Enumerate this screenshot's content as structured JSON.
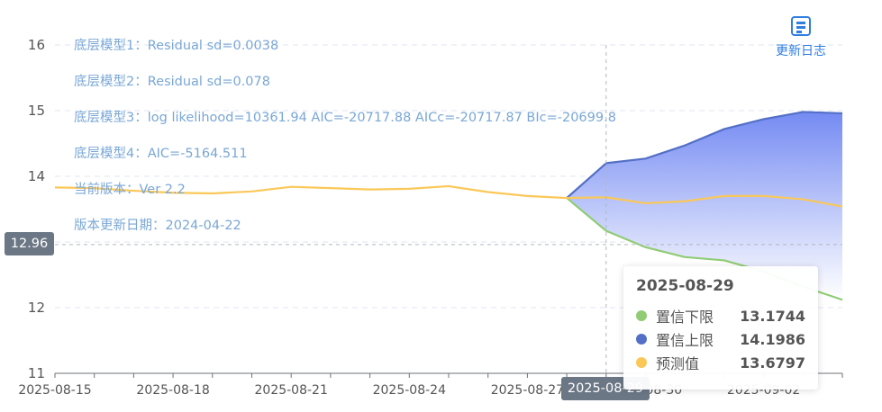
{
  "chart_data": {
    "type": "area",
    "x": [
      "2025-08-15",
      "2025-08-16",
      "2025-08-17",
      "2025-08-18",
      "2025-08-19",
      "2025-08-20",
      "2025-08-21",
      "2025-08-22",
      "2025-08-23",
      "2025-08-24",
      "2025-08-25",
      "2025-08-26",
      "2025-08-27",
      "2025-08-28",
      "2025-08-29",
      "2025-08-30",
      "2025-08-31",
      "2025-09-01",
      "2025-09-02",
      "2025-09-03",
      "2025-09-04"
    ],
    "x_tick_labels": [
      "2025-08-15",
      "2025-08-18",
      "2025-08-21",
      "2025-08-24",
      "2025-08-27",
      "2025-08-30",
      "2025-09-02"
    ],
    "y_ticks": [
      11,
      12,
      13,
      14,
      15,
      16
    ],
    "ylim": [
      11,
      16
    ],
    "series": [
      {
        "name": "置信下限",
        "color": "#91cc75",
        "values": [
          null,
          null,
          null,
          null,
          null,
          null,
          null,
          null,
          null,
          null,
          null,
          null,
          null,
          13.67,
          13.17,
          12.92,
          12.77,
          12.72,
          12.55,
          12.32,
          12.12
        ]
      },
      {
        "name": "置信上限",
        "color": "#5470c6",
        "values": [
          null,
          null,
          null,
          null,
          null,
          null,
          null,
          null,
          null,
          null,
          null,
          null,
          null,
          13.67,
          14.2,
          14.27,
          14.47,
          14.72,
          14.87,
          14.98,
          14.96
        ]
      },
      {
        "name": "预测值",
        "color": "#fac858",
        "values": [
          13.83,
          13.82,
          13.78,
          13.75,
          13.74,
          13.77,
          13.84,
          13.82,
          13.8,
          13.81,
          13.85,
          13.76,
          13.7,
          13.67,
          13.68,
          13.59,
          13.62,
          13.7,
          13.7,
          13.65,
          13.54
        ]
      }
    ],
    "crosshair": {
      "x_label": "2025-08-29",
      "y_label": "12.96",
      "y_value": 12.96
    },
    "annotations": [
      "底层模型1：Residual sd=0.0038",
      "底层模型2：Residual sd=0.078",
      "底层模型3：log likelihood=10361.94 AIC=-20717.88 AICc=-20717.87 BIc=-20699.8",
      "底层模型4：AIC=-5164.511",
      "当前版本：Ver 2.2",
      "版本更新日期：2024-04-22"
    ],
    "tooltip": {
      "date": "2025-08-29",
      "rows": [
        {
          "name": "置信下限",
          "value": "13.1744",
          "color": "#91cc75"
        },
        {
          "name": "置信上限",
          "value": "14.1986",
          "color": "#5470c6"
        },
        {
          "name": "预测值",
          "value": "13.6797",
          "color": "#fac858"
        }
      ]
    }
  },
  "toolbar": {
    "changelog_label": "更新日志",
    "changelog_icon": "document-list-icon"
  }
}
